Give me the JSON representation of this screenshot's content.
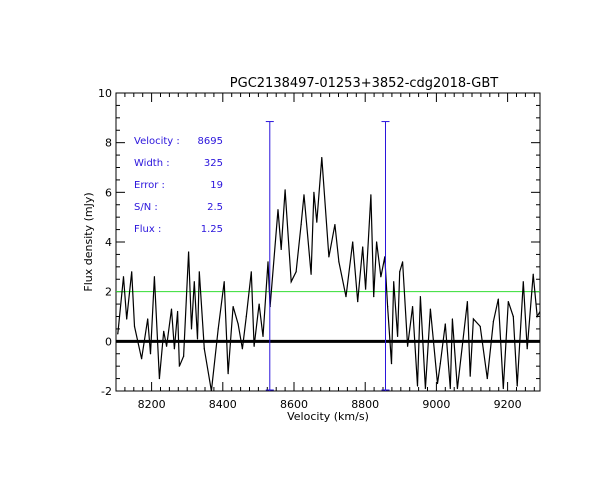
{
  "chart_data": {
    "type": "line",
    "title": "PGC2138497-01253+3852-cdg2018-GBT",
    "xlabel": "Velocity (km/s)",
    "ylabel": "Flux density (mJy)",
    "xlim": [
      8100,
      9291
    ],
    "ylim": [
      -2,
      10
    ],
    "xticks": [
      8200,
      8400,
      8600,
      8800,
      9000,
      9200
    ],
    "yticks": [
      -2,
      0,
      2,
      4,
      6,
      8,
      10
    ],
    "grid": false,
    "colors": {
      "spectrum": "#000000",
      "zero_line": "#000000",
      "threshold_line": "#33dd33",
      "markers": "#2a14dc",
      "stats_text": "#2a14dc"
    },
    "threshold_level": 2,
    "markers": [
      {
        "velocity": 8532,
        "top": 8.85
      },
      {
        "velocity": 8857,
        "top": 8.85
      }
    ],
    "stats": [
      {
        "label": "Velocity :",
        "value": "8695"
      },
      {
        "label": "Width :",
        "value": "325"
      },
      {
        "label": "Error :",
        "value": "19"
      },
      {
        "label": "S/N :",
        "value": "2.5"
      },
      {
        "label": "Flux :",
        "value": "1.25"
      }
    ],
    "series": [
      {
        "x": [
          8105,
          8121,
          8130,
          8144,
          8152,
          8172,
          8189,
          8197,
          8208,
          8222,
          8234,
          8242,
          8256,
          8264,
          8273,
          8278,
          8290,
          8304,
          8312,
          8320,
          8329,
          8334,
          8348,
          8368,
          8387,
          8404,
          8415,
          8429,
          8443,
          8455,
          8466,
          8480,
          8488,
          8502,
          8513,
          8527,
          8533,
          8555,
          8564,
          8575,
          8592,
          8606,
          8620,
          8628,
          8648,
          8656,
          8664,
          8678,
          8698,
          8715,
          8726,
          8746,
          8765,
          8779,
          8793,
          8801,
          8816,
          8824,
          8832,
          8844,
          8855,
          8863,
          8874,
          8880,
          8891,
          8897,
          8905,
          8919,
          8933,
          8947,
          8955,
          8969,
          8983,
          9003,
          9011,
          9025,
          9039,
          9045,
          9059,
          9087,
          9095,
          9104,
          9123,
          9143,
          9160,
          9174,
          9188,
          9202,
          9216,
          9227,
          9244,
          9255,
          9272,
          9283,
          9291
        ],
        "y": [
          0.3,
          2.6,
          0.9,
          2.8,
          0.6,
          -0.7,
          0.9,
          -0.5,
          2.6,
          -1.5,
          0.4,
          -0.2,
          1.3,
          -0.3,
          1.2,
          -1.0,
          -0.6,
          3.6,
          0.5,
          2.4,
          0.1,
          2.8,
          -0.3,
          -2.0,
          0.5,
          2.4,
          -1.3,
          1.4,
          0.7,
          -0.3,
          1.0,
          2.8,
          -0.2,
          1.5,
          0.2,
          3.2,
          1.4,
          5.3,
          3.7,
          6.1,
          2.4,
          2.8,
          4.7,
          5.9,
          2.7,
          6.0,
          4.8,
          7.4,
          3.4,
          4.7,
          3.2,
          1.8,
          4.0,
          1.6,
          3.8,
          2.1,
          5.9,
          1.8,
          4.0,
          2.6,
          3.4,
          1.4,
          -0.9,
          2.4,
          0.2,
          2.8,
          3.2,
          -0.2,
          1.4,
          -1.8,
          1.8,
          -1.9,
          1.3,
          -1.7,
          -0.9,
          0.7,
          -1.9,
          0.9,
          -1.9,
          1.6,
          -1.4,
          0.9,
          0.6,
          -1.5,
          0.8,
          1.7,
          -1.9,
          1.6,
          1.0,
          -1.8,
          2.4,
          -0.3,
          2.7,
          1.0,
          1.2
        ]
      }
    ]
  }
}
